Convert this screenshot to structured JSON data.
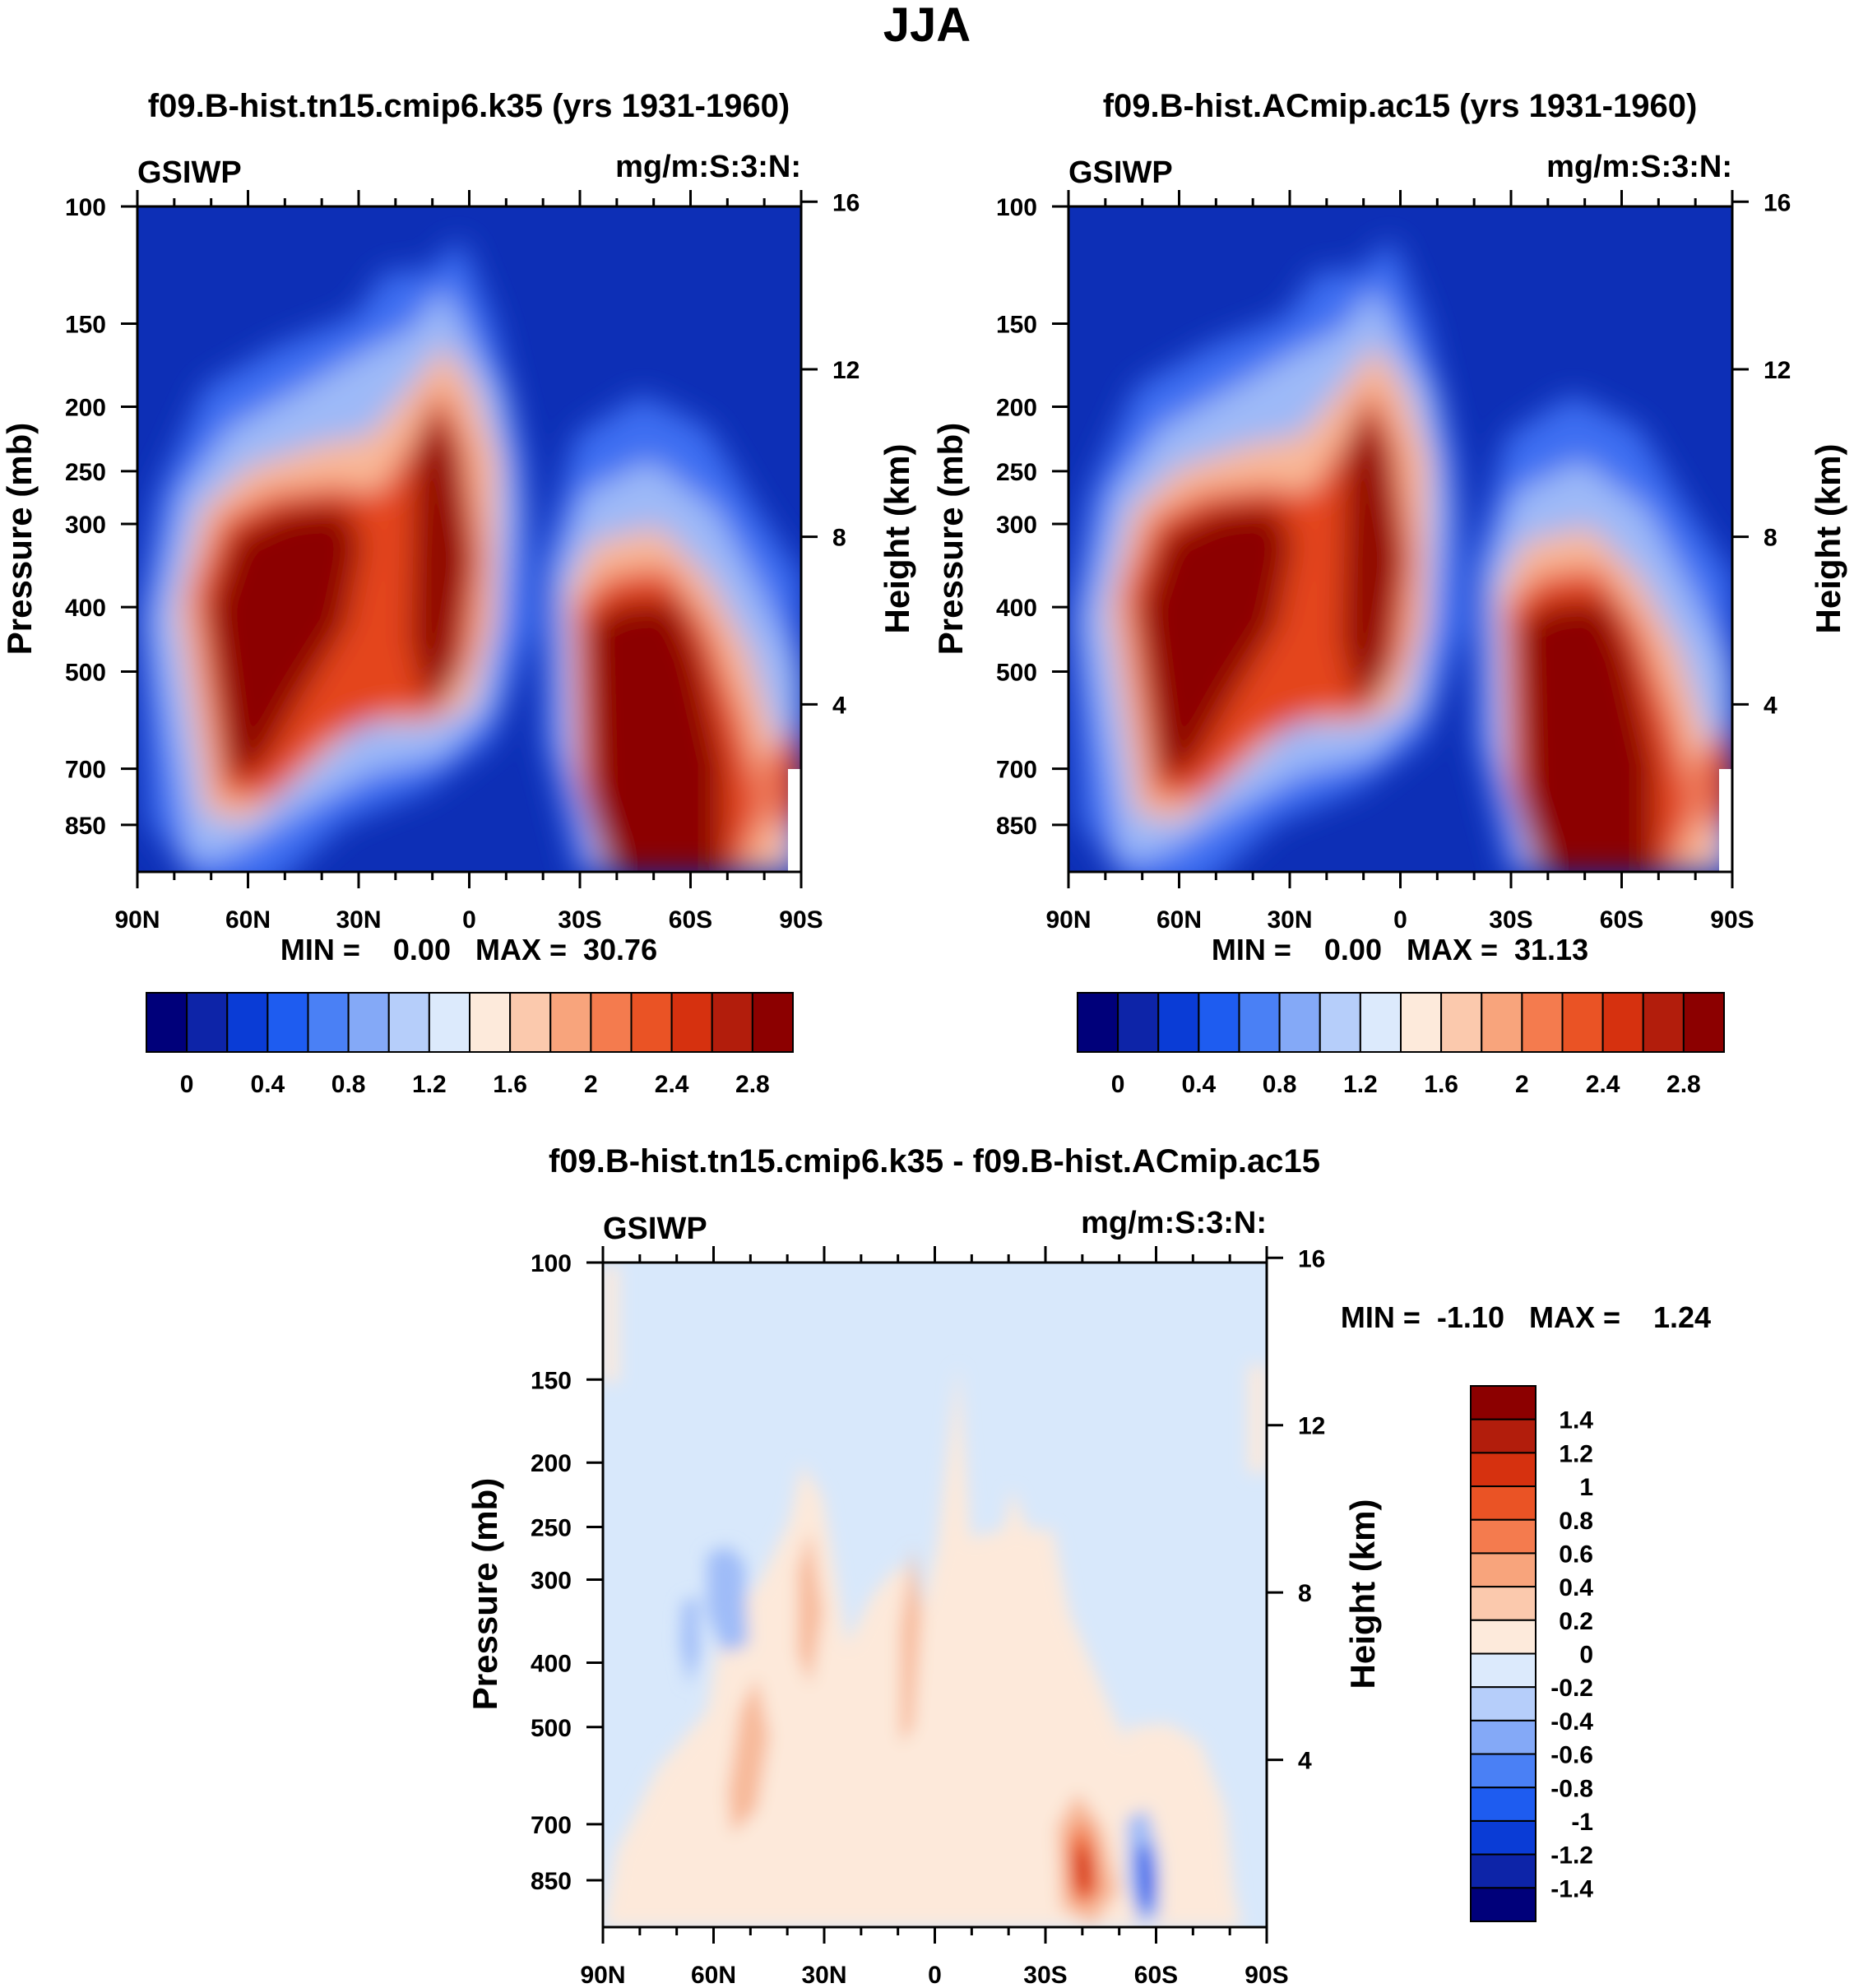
{
  "figure_title": "JJA",
  "chart_data": [
    {
      "type": "heatmap",
      "title": "f09.B-hist.tn15.cmip6.k35 (yrs 1931-1960)",
      "variable": "GSIWP",
      "units": "mg/m:S:3:N:",
      "ylabel": "Pressure (mb)",
      "ylabel_right": "Height (km)",
      "x_ticks": [
        "90N",
        "60N",
        "30N",
        "0",
        "30S",
        "60S",
        "90S"
      ],
      "y_ticks": [
        "100",
        "150",
        "200",
        "250",
        "300",
        "400",
        "500",
        "700",
        "850"
      ],
      "y_ticks_right": [
        "16",
        "12",
        "8",
        "4"
      ],
      "ylim": [
        100,
        1000
      ],
      "stats_text": "MIN =    0.00   MAX =  30.76",
      "min": 0.0,
      "max": 30.76,
      "colorbar_labels": [
        "0",
        "0.4",
        "0.8",
        "1.2",
        "1.6",
        "2",
        "2.4",
        "2.8"
      ],
      "colorbar_levels": [
        0,
        0.2,
        0.4,
        0.6,
        0.8,
        1.0,
        1.2,
        1.4,
        1.6,
        1.8,
        2.0,
        2.2,
        2.4,
        2.6,
        2.8
      ],
      "features": [
        {
          "name": "nh-midlat-max",
          "lat": [
            70,
            35
          ],
          "p": [
            280,
            700
          ],
          "value": 3.0
        },
        {
          "name": "tropical-max",
          "lat": [
            15,
            0
          ],
          "p": [
            180,
            600
          ],
          "value": 3.0
        },
        {
          "name": "sh-midlat-max",
          "lat": [
            -30,
            -60
          ],
          "p": [
            450,
            1000
          ],
          "value": 3.0
        }
      ]
    },
    {
      "type": "heatmap",
      "title": "f09.B-hist.ACmip.ac15 (yrs 1931-1960)",
      "variable": "GSIWP",
      "units": "mg/m:S:3:N:",
      "ylabel": "Pressure (mb)",
      "ylabel_right": "Height (km)",
      "x_ticks": [
        "90N",
        "60N",
        "30N",
        "0",
        "30S",
        "60S",
        "90S"
      ],
      "y_ticks": [
        "100",
        "150",
        "200",
        "250",
        "300",
        "400",
        "500",
        "700",
        "850"
      ],
      "y_ticks_right": [
        "16",
        "12",
        "8",
        "4"
      ],
      "ylim": [
        100,
        1000
      ],
      "stats_text": "MIN =    0.00   MAX =  31.13",
      "min": 0.0,
      "max": 31.13,
      "colorbar_labels": [
        "0",
        "0.4",
        "0.8",
        "1.2",
        "1.6",
        "2",
        "2.4",
        "2.8"
      ],
      "colorbar_levels": [
        0,
        0.2,
        0.4,
        0.6,
        0.8,
        1.0,
        1.2,
        1.4,
        1.6,
        1.8,
        2.0,
        2.2,
        2.4,
        2.6,
        2.8
      ],
      "features": [
        {
          "name": "nh-midlat-max",
          "lat": [
            70,
            35
          ],
          "p": [
            280,
            700
          ],
          "value": 3.0
        },
        {
          "name": "tropical-max",
          "lat": [
            15,
            0
          ],
          "p": [
            180,
            600
          ],
          "value": 3.0
        },
        {
          "name": "sh-midlat-max",
          "lat": [
            -30,
            -60
          ],
          "p": [
            450,
            1000
          ],
          "value": 3.0
        }
      ]
    },
    {
      "type": "heatmap",
      "title": "f09.B-hist.tn15.cmip6.k35 - f09.B-hist.ACmip.ac15",
      "variable": "GSIWP",
      "units": "mg/m:S:3:N:",
      "ylabel": "Pressure (mb)",
      "ylabel_right": "Height (km)",
      "x_ticks": [
        "90N",
        "60N",
        "30N",
        "0",
        "30S",
        "60S",
        "90S"
      ],
      "y_ticks": [
        "100",
        "150",
        "200",
        "250",
        "300",
        "400",
        "500",
        "700",
        "850"
      ],
      "y_ticks_right": [
        "16",
        "12",
        "8",
        "4"
      ],
      "ylim": [
        100,
        1000
      ],
      "stats_text": "MIN =  -1.10   MAX =    1.24",
      "min": -1.1,
      "max": 1.24,
      "colorbar_labels": [
        "1.4",
        "1.2",
        "1",
        "0.8",
        "0.6",
        "0.4",
        "0.2",
        "0",
        "-0.2",
        "-0.4",
        "-0.6",
        "-0.8",
        "-1",
        "-1.2",
        "-1.4"
      ],
      "colorbar_levels": [
        -1.4,
        -1.2,
        -1.0,
        -0.8,
        -0.6,
        -0.4,
        -0.2,
        0,
        0.2,
        0.4,
        0.6,
        0.8,
        1.0,
        1.2,
        1.4
      ],
      "features": [
        {
          "name": "positive-max",
          "lat": -40,
          "p": 780,
          "value": 1.24
        },
        {
          "name": "negative-min",
          "lat": -58,
          "p": 830,
          "value": -1.1
        }
      ]
    }
  ],
  "colors": {
    "cmap": [
      "#00007a",
      "#0d24a8",
      "#0a3cd6",
      "#1e5cf0",
      "#4a80f5",
      "#84a9f7",
      "#b6cefa",
      "#dceafc",
      "#fdeadb",
      "#fbc9ad",
      "#f8a47c",
      "#f47b4e",
      "#ea5325",
      "#d6310f",
      "#b21d0c",
      "#8c0000"
    ],
    "plot_bg_abs": "#0d2fb6",
    "plot_bg_diff": "#d8e8fb"
  }
}
